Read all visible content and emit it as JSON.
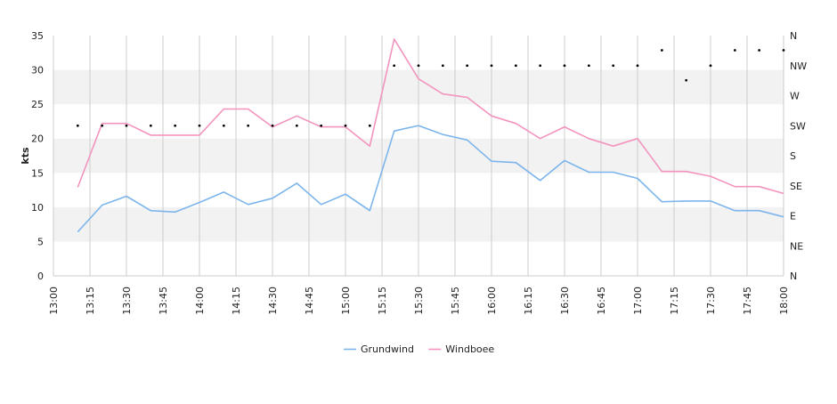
{
  "chart_data": {
    "type": "line",
    "ylabel": "kts",
    "ylim": [
      0,
      35
    ],
    "y_ticks": [
      "0",
      "5",
      "10",
      "15",
      "20",
      "25",
      "30",
      "35"
    ],
    "direction_ticks": [
      "N",
      "NE",
      "E",
      "SE",
      "S",
      "SW",
      "W",
      "NW",
      "N"
    ],
    "x_ticks": [
      "13:00",
      "13:15",
      "13:30",
      "13:45",
      "14:00",
      "14:15",
      "14:30",
      "14:45",
      "15:00",
      "15:15",
      "15:30",
      "15:45",
      "16:00",
      "16:15",
      "16:30",
      "16:45",
      "17:00",
      "17:15",
      "17:30",
      "17:45",
      "18:00"
    ],
    "x_range_minutes": [
      780,
      1080
    ],
    "grid": true,
    "legend_position": "bottom-center",
    "x": [
      "13:10",
      "13:20",
      "13:30",
      "13:40",
      "13:50",
      "14:00",
      "14:10",
      "14:20",
      "14:30",
      "14:40",
      "14:50",
      "15:00",
      "15:10",
      "15:20",
      "15:30",
      "15:40",
      "15:50",
      "16:00",
      "16:10",
      "16:20",
      "16:30",
      "16:40",
      "16:50",
      "17:00",
      "17:10",
      "17:20",
      "17:30",
      "17:40",
      "17:50",
      "18:00"
    ],
    "series": [
      {
        "name": "Grundwind",
        "color": "#7cb5ec",
        "values": [
          6.4,
          10.3,
          11.6,
          9.5,
          9.3,
          10.7,
          12.2,
          10.4,
          11.3,
          13.5,
          10.4,
          11.9,
          9.5,
          21.1,
          21.9,
          20.6,
          19.8,
          16.7,
          16.5,
          13.9,
          16.8,
          15.1,
          15.1,
          14.2,
          10.8,
          10.9,
          10.9,
          9.5,
          9.5,
          8.6
        ]
      },
      {
        "name": "Windboee",
        "color": "#f394bf",
        "values": [
          12.9,
          22.2,
          22.2,
          20.5,
          20.5,
          20.5,
          24.3,
          24.3,
          21.7,
          23.3,
          21.7,
          21.7,
          18.9,
          34.5,
          28.7,
          26.5,
          26.0,
          23.3,
          22.2,
          20.0,
          21.7,
          20.0,
          18.9,
          20.0,
          15.2,
          15.2,
          14.5,
          13.0,
          13.0,
          12.0
        ]
      }
    ],
    "direction_series": {
      "name": "direction",
      "color": "#000000",
      "values_degrees": [
        225,
        225,
        225,
        225,
        225,
        225,
        225,
        225,
        225,
        225,
        225,
        225,
        225,
        315,
        315,
        315,
        315,
        315,
        315,
        315,
        315,
        315,
        315,
        315,
        338,
        293,
        315,
        338,
        338,
        338
      ]
    }
  }
}
